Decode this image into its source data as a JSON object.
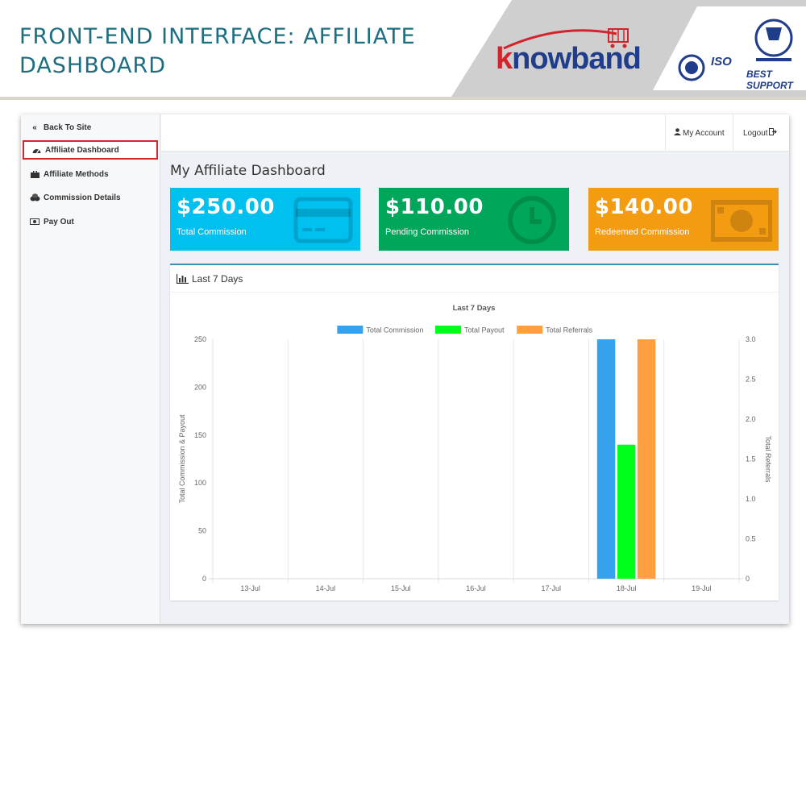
{
  "banner": {
    "title": "FRONT-END INTERFACE: AFFILIATE DASHBOARD",
    "logo_text": "nowband",
    "logo_initial": "k",
    "badge_iso": "ISO",
    "badge_support": "BEST SUPPORT"
  },
  "sidebar": {
    "items": [
      {
        "label": "Back To Site",
        "icon": "double-chevron-left-icon"
      },
      {
        "label": "Affiliate Dashboard",
        "icon": "dashboard-icon",
        "active": true
      },
      {
        "label": "Affiliate Methods",
        "icon": "briefcase-icon"
      },
      {
        "label": "Commission Details",
        "icon": "coins-icon"
      },
      {
        "label": "Pay Out",
        "icon": "money-icon"
      }
    ]
  },
  "topbar": {
    "my_account": "My Account",
    "logout": "Logout"
  },
  "page": {
    "title": "My Affiliate Dashboard"
  },
  "cards": [
    {
      "amount": "$250.00",
      "label": "Total Commission",
      "color": "#00c0ef",
      "icon": "credit-card-icon"
    },
    {
      "amount": "$110.00",
      "label": "Pending Commission",
      "color": "#00a65a",
      "icon": "clock-icon"
    },
    {
      "amount": "$140.00",
      "label": "Redeemed Commission",
      "color": "#f39c12",
      "icon": "banknote-icon"
    }
  ],
  "panel": {
    "title": "Last 7 Days",
    "icon": "bar-chart-icon"
  },
  "chart_data": {
    "type": "bar",
    "title": "Last 7 Days",
    "categories": [
      "13-Jul",
      "14-Jul",
      "15-Jul",
      "16-Jul",
      "17-Jul",
      "18-Jul",
      "19-Jul"
    ],
    "series": [
      {
        "name": "Total Commission",
        "axis": "left",
        "color": "#36a2eb",
        "values": [
          0,
          0,
          0,
          0,
          0,
          250,
          0
        ]
      },
      {
        "name": "Total Payout",
        "axis": "left",
        "color": "#00ff1a",
        "values": [
          0,
          0,
          0,
          0,
          0,
          140,
          0
        ]
      },
      {
        "name": "Total Referrals",
        "axis": "right",
        "color": "#ff9f40",
        "values": [
          0,
          0,
          0,
          0,
          0,
          3,
          0
        ]
      }
    ],
    "ylabel": "Total Commission & Payout",
    "ylabel_right": "Total Referrals",
    "ylim": [
      0,
      250
    ],
    "ylim_right": [
      0,
      3
    ],
    "yticks": [
      "0",
      "50",
      "100",
      "150",
      "200",
      "250"
    ],
    "yticks_right": [
      "0",
      "0.5",
      "1.0",
      "1.5",
      "2.0",
      "2.5",
      "3.0"
    ],
    "legend": "top",
    "grid": true
  }
}
